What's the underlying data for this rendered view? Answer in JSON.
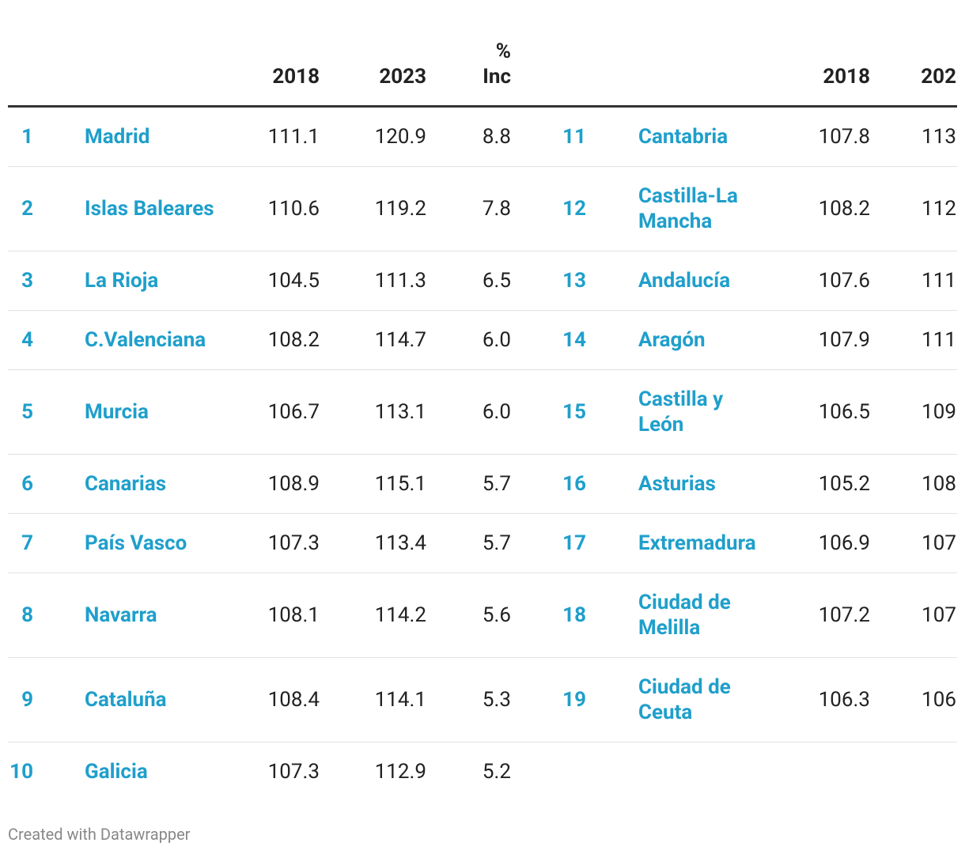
{
  "table": {
    "left": {
      "header": [
        "2018",
        "2023",
        "% Inc"
      ],
      "rows": [
        [
          "1",
          "Madrid",
          "111.1",
          "120.9",
          "8.8"
        ],
        [
          "2",
          "Islas Baleares",
          "110.6",
          "119.2",
          "7.8"
        ],
        [
          "3",
          "La Rioja",
          "104.5",
          "111.3",
          "6.5"
        ],
        [
          "4",
          "C.Valenciana",
          "108.2",
          "114.7",
          "6.0"
        ],
        [
          "5",
          "Murcia",
          "106.7",
          "113.1",
          "6.0"
        ],
        [
          "6",
          "Canarias",
          "108.9",
          "115.1",
          "5.7"
        ],
        [
          "7",
          "País Vasco",
          "107.3",
          "113.4",
          "5.7"
        ],
        [
          "8",
          "Navarra",
          "108.1",
          "114.2",
          "5.6"
        ],
        [
          "9",
          "Cataluña",
          "108.4",
          "114.1",
          "5.3"
        ],
        [
          "10",
          "Galicia",
          "107.3",
          "112.9",
          "5.2"
        ]
      ]
    },
    "right": {
      "header": [
        "2018",
        "202"
      ],
      "rows": [
        [
          "11",
          "Cantabria",
          "107.8",
          "113"
        ],
        [
          "12",
          "Castilla-La Mancha",
          "108.2",
          "112"
        ],
        [
          "13",
          "Andalucía",
          "107.6",
          "111"
        ],
        [
          "14",
          "Aragón",
          "107.9",
          "111"
        ],
        [
          "15",
          "Castilla y León",
          "106.5",
          "109"
        ],
        [
          "16",
          "Asturias",
          "105.2",
          "108"
        ],
        [
          "17",
          "Extremadura",
          "106.9",
          "107"
        ],
        [
          "18",
          "Ciudad de Melilla",
          "107.2",
          "107"
        ],
        [
          "19",
          "Ciudad de Ceuta",
          "106.3",
          "106"
        ]
      ]
    }
  },
  "footer": "Created with Datawrapper"
}
